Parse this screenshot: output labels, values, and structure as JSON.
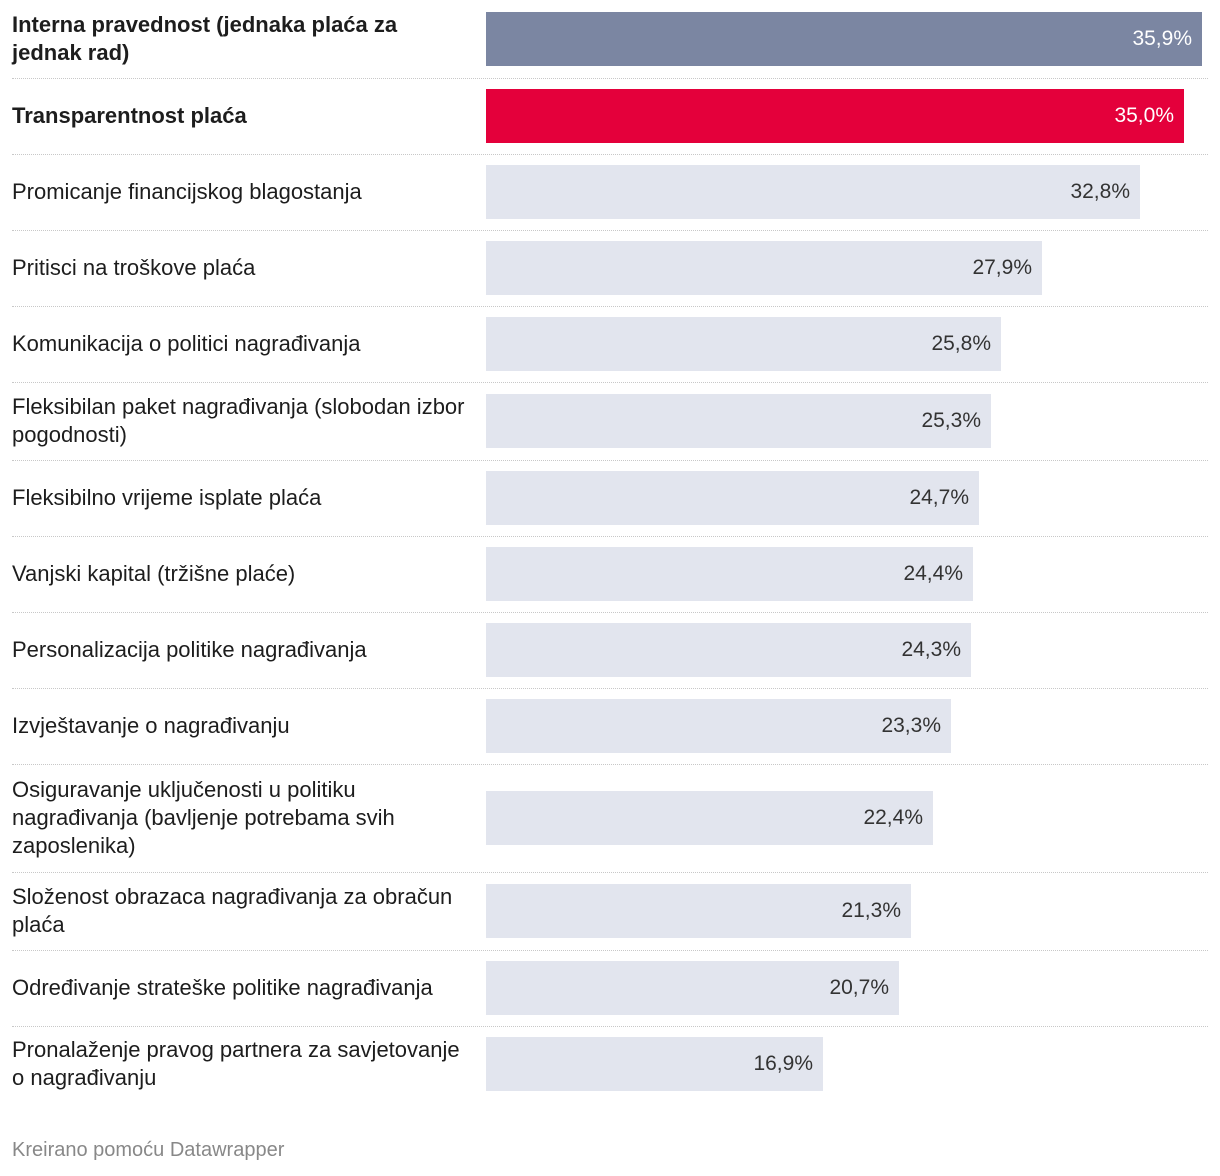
{
  "chart_data": {
    "type": "bar",
    "orientation": "horizontal",
    "unit": "%",
    "xlim": [
      0,
      36.5
    ],
    "categories": [
      "Interna pravednost (jednaka plaća za jednak rad)",
      "Transparentnost plaća",
      "Promicanje financijskog blagostanja",
      "Pritisci na troškove plaća",
      "Komunikacija o politici nagrađivanja",
      "Fleksibilan paket nagrađivanja (slobodan izbor pogodnosti)",
      "Fleksibilno vrijeme isplate plaća",
      "Vanjski kapital (tržišne plaće)",
      "Personalizacija politike nagrađivanja",
      "Izvještavanje o nagrađivanju",
      "Osiguravanje uključenosti u politiku nagrađivanja (bavljenje potrebama svih zaposlenika)",
      "Složenost obrazaca nagrađivanja za obračun plaća",
      "Određivanje strateške politike nagrađivanja",
      "Pronalaženje pravog partnera za savjetovanje o nagrađivanju"
    ],
    "values": [
      35.9,
      35.0,
      32.8,
      27.9,
      25.8,
      25.3,
      24.7,
      24.4,
      24.3,
      23.3,
      22.4,
      21.3,
      20.7,
      16.9
    ],
    "value_labels": [
      "35,9%",
      "35,0%",
      "32,8%",
      "27,9%",
      "25,8%",
      "25,3%",
      "24,7%",
      "24,4%",
      "24,3%",
      "23,3%",
      "22,4%",
      "21,3%",
      "20,7%",
      "16,9%"
    ],
    "highlighted": [
      true,
      true,
      false,
      false,
      false,
      false,
      false,
      false,
      false,
      false,
      false,
      false,
      false,
      false
    ],
    "colors": [
      "#7b86a2",
      "#e4003b",
      "#e2e5ee",
      "#e2e5ee",
      "#e2e5ee",
      "#e2e5ee",
      "#e2e5ee",
      "#e2e5ee",
      "#e2e5ee",
      "#e2e5ee",
      "#e2e5ee",
      "#e2e5ee",
      "#e2e5ee",
      "#e2e5ee"
    ]
  },
  "footer": {
    "credit": "Kreirano pomoću Datawrapper"
  }
}
